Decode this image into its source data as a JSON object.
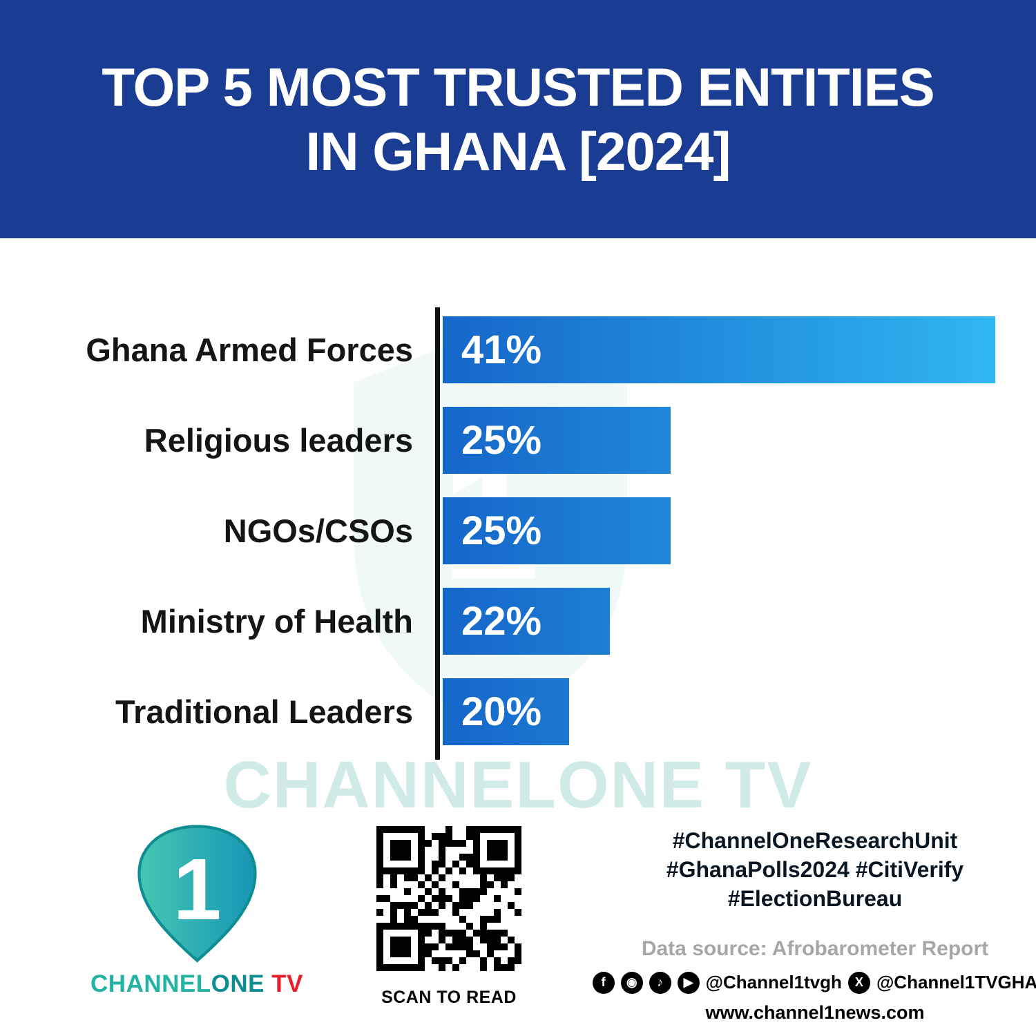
{
  "header": {
    "title_line1": "TOP 5 MOST TRUSTED ENTITIES",
    "title_line2": "IN GHANA [2024]"
  },
  "chart_data": {
    "type": "bar",
    "orientation": "horizontal",
    "title": "Top 5 Most Trusted Entities in Ghana [2024]",
    "categories": [
      "Ghana Armed Forces",
      "Religious leaders",
      "NGOs/CSOs",
      "Ministry of Health",
      "Traditional Leaders"
    ],
    "values": [
      41,
      25,
      25,
      22,
      20
    ],
    "value_labels": [
      "41%",
      "25%",
      "25%",
      "22%",
      "20%"
    ],
    "unit": "%",
    "xlim": [
      13.75,
      41
    ],
    "grid": false,
    "legend": false,
    "bar_gradient": [
      "#1566C9",
      "#2FB7F0"
    ],
    "axis_color": "#111111"
  },
  "watermark": {
    "text": "CHANNELONE TV"
  },
  "footer": {
    "logo": {
      "numeral": "1",
      "brand_channel": "CHANNEL",
      "brand_one": "ONE",
      "brand_tv": " TV"
    },
    "qr_caption": "SCAN TO READ",
    "hashtags": [
      "#ChannelOneResearchUnit",
      "#GhanaPolls2024 #CitiVerify",
      "#ElectionBureau"
    ],
    "data_source": "Data source: Afrobarometer Report",
    "social": {
      "glyph_facebook": "f",
      "glyph_instagram": "◉",
      "glyph_tiktok": "♪",
      "glyph_youtube": "▶",
      "glyph_x": "X",
      "handle_1": "@Channel1tvgh",
      "handle_2": "@Channel1TVGHA"
    },
    "website": "www.channel1news.com"
  },
  "theme": {
    "header_bg": "#1B3C93",
    "bar_gradient_start": "#1566C9",
    "bar_gradient_end": "#2FB7F0",
    "axis_color": "#111111",
    "label_color": "#151515",
    "value_text_color": "#FFFFFF",
    "hashtag_color": "#0B1623",
    "source_color": "#A6A6A6",
    "watermark_color": "rgba(137,206,196,0.40)",
    "logo_teal": "#23B3A2",
    "logo_teal_dark": "#0E8E92",
    "logo_red": "#E51E2A"
  }
}
